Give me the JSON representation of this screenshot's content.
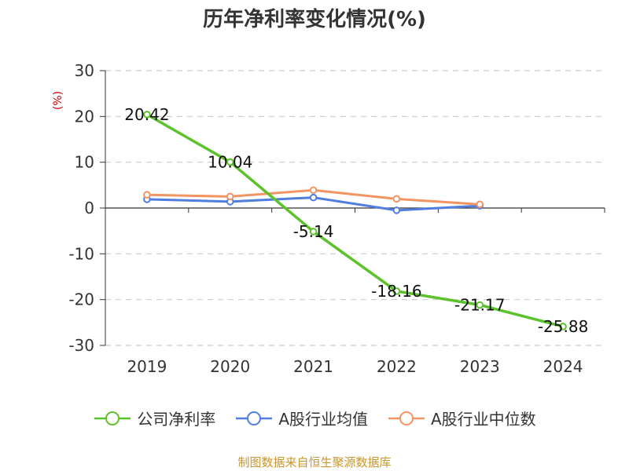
{
  "chart_data": {
    "type": "line",
    "title": "历年净利率变化情况(%)",
    "ylabel": "(%)",
    "xlabel": "",
    "categories": [
      "2019",
      "2020",
      "2021",
      "2022",
      "2023",
      "2024"
    ],
    "ylim": [
      -30,
      30
    ],
    "yticks": [
      30,
      20,
      10,
      0,
      -10,
      -20,
      -30
    ],
    "grid": true,
    "legend_position": "bottom",
    "series": [
      {
        "name": "公司净利率",
        "color": "#5cc22b",
        "values": [
          20.42,
          10.04,
          -5.14,
          -18.16,
          -21.17,
          -25.88
        ],
        "labels": [
          "20.42",
          "10.04",
          "-5.14",
          "-18.16",
          "-21.17",
          "-25.88"
        ]
      },
      {
        "name": "A股行业均值",
        "color": "#4f7ee0",
        "values": [
          1.9,
          1.4,
          2.3,
          -0.5,
          0.5,
          null
        ]
      },
      {
        "name": "A股行业中位数",
        "color": "#f39463",
        "values": [
          2.9,
          2.5,
          3.9,
          2.0,
          0.8,
          null
        ]
      }
    ]
  },
  "source_note": "制图数据来自恒生聚源数据库"
}
